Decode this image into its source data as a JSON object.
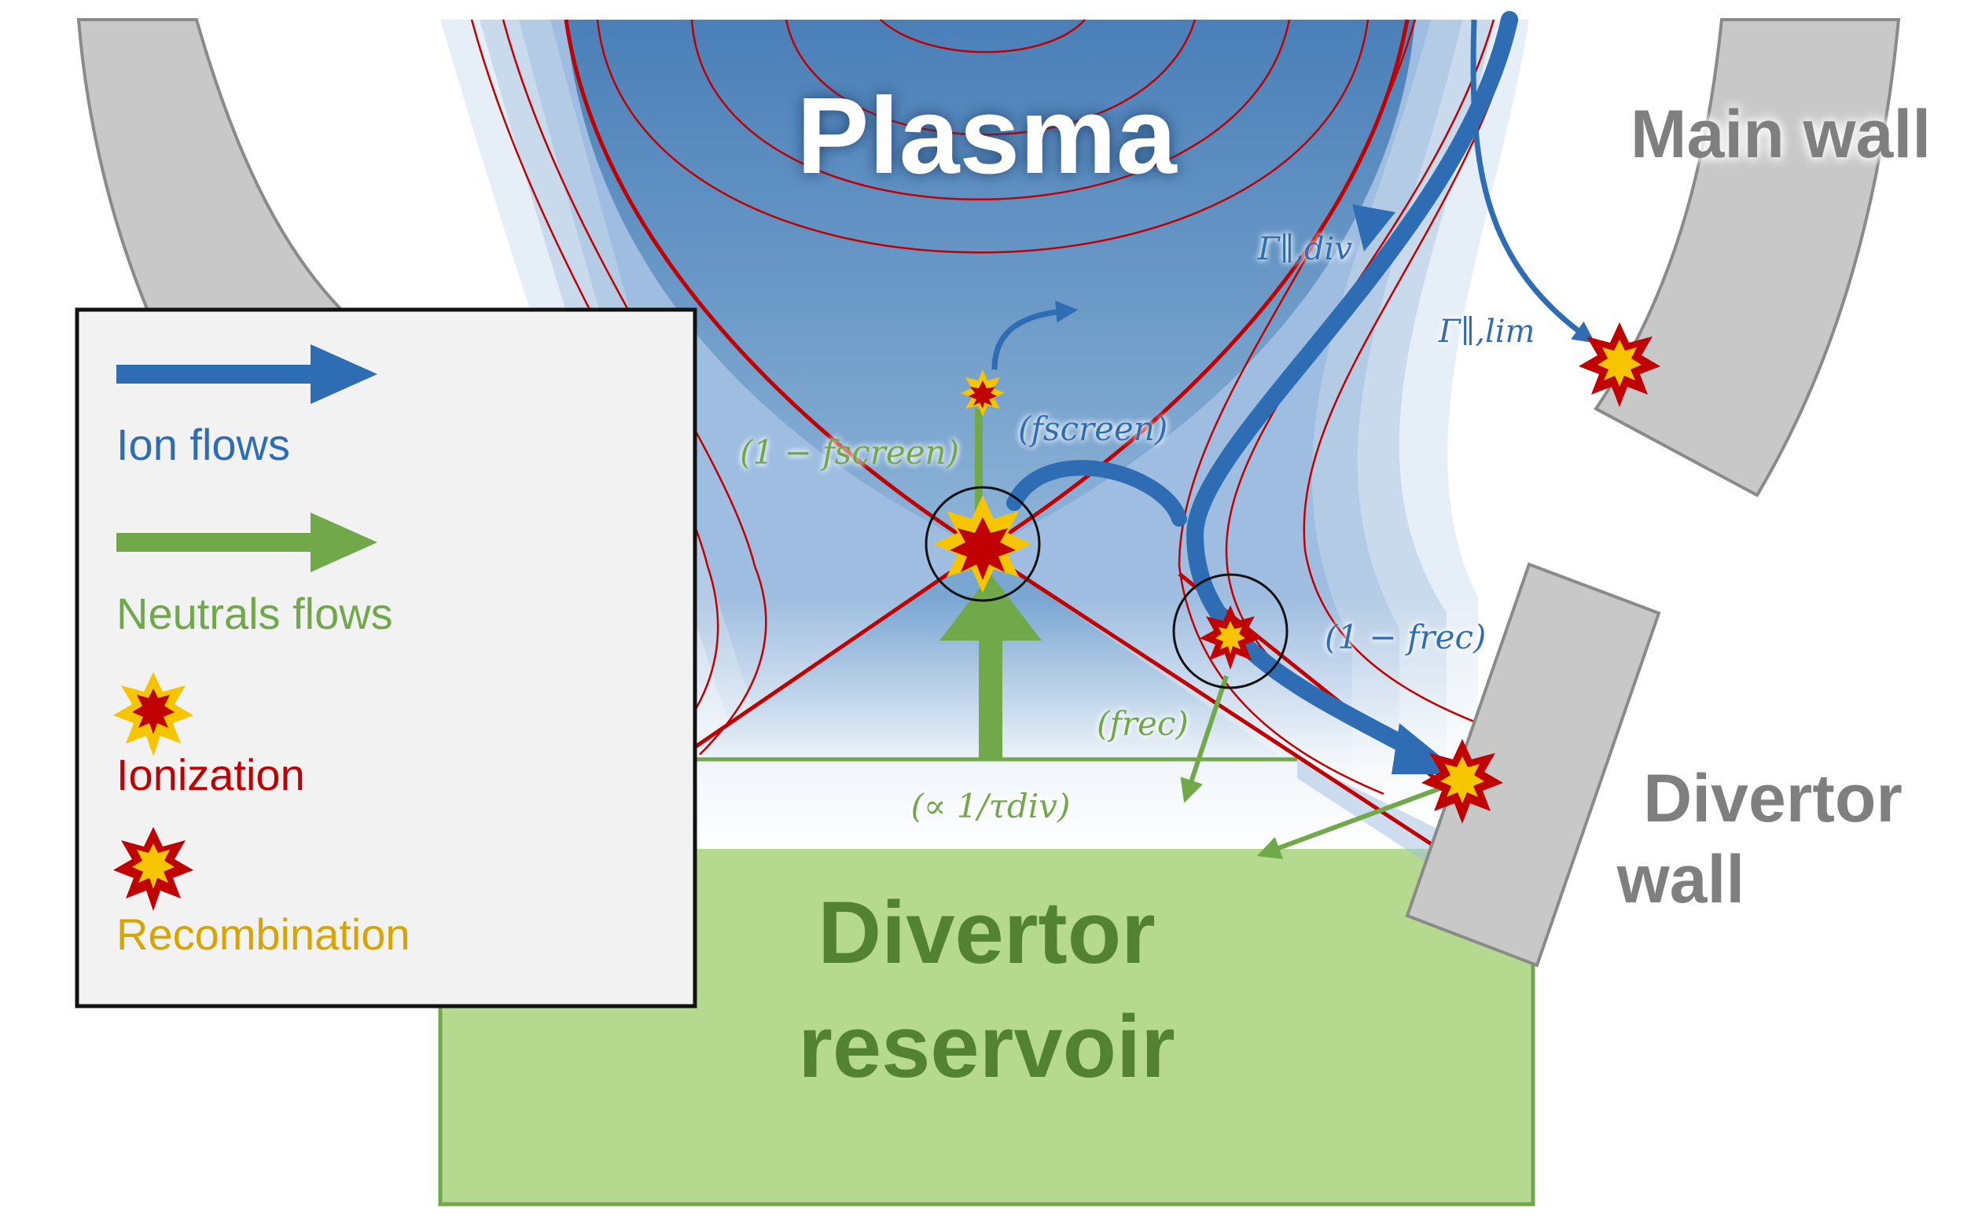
{
  "labels": {
    "plasma": "Plasma",
    "main_wall": "Main wall",
    "divertor_wall_line1": "Divertor",
    "divertor_wall_line2": "wall",
    "reservoir_line1": "Divertor",
    "reservoir_line2": "reservoir"
  },
  "flow_labels": {
    "gamma_div": "Γ∥,div",
    "gamma_lim": "Γ∥,lim",
    "one_minus_fscreen": "(1 − fscreen)",
    "fscreen": "(fscreen)",
    "one_minus_frec": "(1 − frec)",
    "frec": "(frec)",
    "tau_div": "(∝ 1/τdiv)"
  },
  "legend": {
    "ion_flows": "Ion flows",
    "neutral_flows": "Neutrals flows",
    "ionization": "Ionization",
    "recombination": "Recombination"
  },
  "colors": {
    "ion": "#2e6db4",
    "neutral": "#70a84a",
    "neutral_text": "#5b8f3a",
    "ionization": "#c00000",
    "recombination": "#d9a300",
    "wall": "#c8c8c8",
    "reservoir": "#b5d98e",
    "plasma": "#4f86c0"
  }
}
